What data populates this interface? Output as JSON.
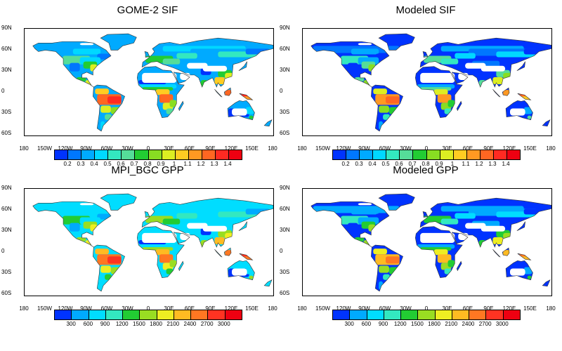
{
  "panels": [
    {
      "id": "gome2-sif",
      "title": "GOME-2 SIF",
      "scale": "sif",
      "style": "obs"
    },
    {
      "id": "modeled-sif",
      "title": "Modeled SIF",
      "scale": "sif",
      "style": "model"
    },
    {
      "id": "mpi-bgc-gpp",
      "title": "MPI_BGC GPP",
      "scale": "gpp",
      "style": "obs"
    },
    {
      "id": "modeled-gpp",
      "title": "Modeled GPP",
      "scale": "gpp",
      "style": "model"
    }
  ],
  "lat_ticks": [
    "90N",
    "60N",
    "30N",
    "0",
    "30S",
    "60S"
  ],
  "lon_ticks": [
    "180",
    "150W",
    "120W",
    "90W",
    "60W",
    "30W",
    "0",
    "30E",
    "60E",
    "90E",
    "120E",
    "150E",
    "180"
  ],
  "colorbars": {
    "sif": {
      "labels": [
        "0.2",
        "0.3",
        "0.4",
        "0.5",
        "0.6",
        "0.7",
        "0.8",
        "0.9",
        "1",
        "1.1",
        "1.2",
        "1.3",
        "1.4"
      ]
    },
    "gpp": {
      "labels": [
        "300",
        "600",
        "900",
        "1200",
        "1500",
        "1800",
        "2100",
        "2400",
        "2700",
        "3000"
      ]
    }
  },
  "colors": {
    "sif": [
      "#0033ff",
      "#0077ff",
      "#00aaff",
      "#00d8ff",
      "#33e8c0",
      "#55dd99",
      "#22cc33",
      "#88dd22",
      "#ddee22",
      "#ffcc22",
      "#ff9922",
      "#ff6622",
      "#ff2a22",
      "#ee0011"
    ],
    "gpp": [
      "#0033ff",
      "#00aaff",
      "#00ddff",
      "#33e8c0",
      "#22cc33",
      "#99dd22",
      "#eeee22",
      "#ffbb22",
      "#ff7722",
      "#ff3322",
      "#ee0011"
    ],
    "land_outline": "#333333"
  }
}
